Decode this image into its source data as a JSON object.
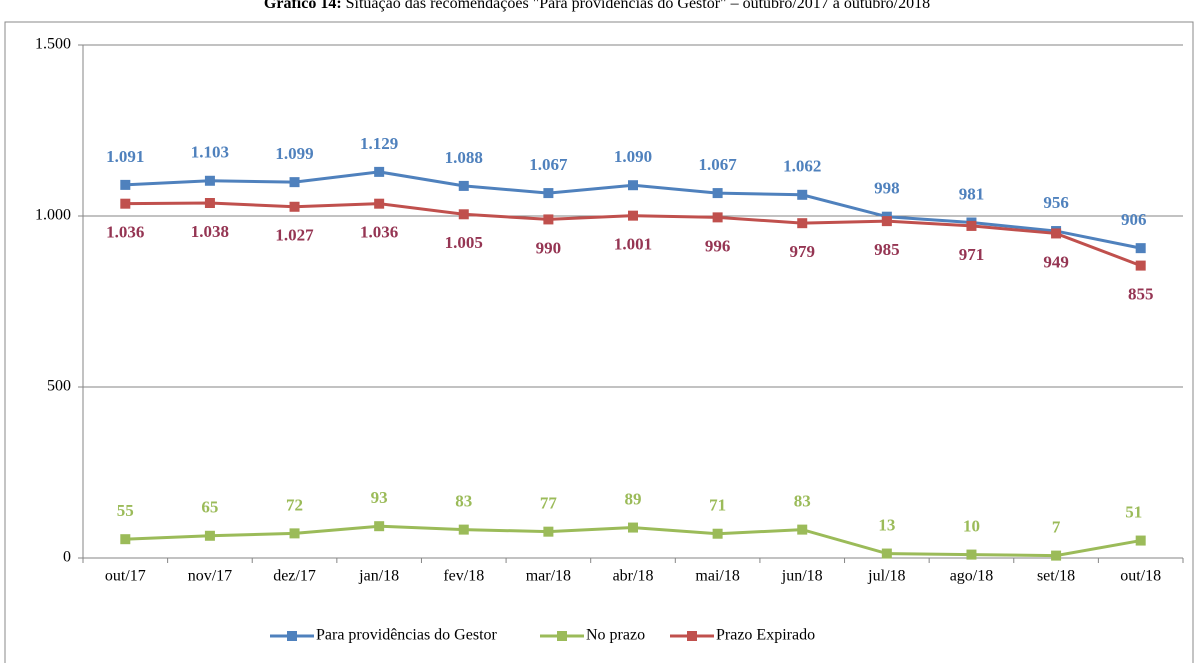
{
  "chart_data": {
    "type": "line",
    "title_label": "Gráfico 14:",
    "title": "Situação das recomendações \"Para providências do Gestor\" – outubro/2017 a outubro/2018",
    "categories": [
      "out/17",
      "nov/17",
      "dez/17",
      "jan/18",
      "fev/18",
      "mar/18",
      "abr/18",
      "mai/18",
      "jun/18",
      "jul/18",
      "ago/18",
      "set/18",
      "out/18"
    ],
    "series": [
      {
        "name": "Para providências do Gestor",
        "color": "#4f81bd",
        "label_color": "#4f81bd",
        "values": [
          1091,
          1103,
          1099,
          1129,
          1088,
          1067,
          1090,
          1067,
          1062,
          998,
          981,
          956,
          906
        ],
        "value_labels": [
          "1.091",
          "1.103",
          "1.099",
          "1.129",
          "1.088",
          "1.067",
          "1.090",
          "1.067",
          "1.062",
          "998",
          "981",
          "956",
          "906"
        ]
      },
      {
        "name": "No prazo",
        "color": "#9bbb59",
        "label_color": "#9bbb59",
        "values": [
          55,
          65,
          72,
          93,
          83,
          77,
          89,
          71,
          83,
          13,
          10,
          7,
          51
        ],
        "value_labels": [
          "55",
          "65",
          "72",
          "93",
          "83",
          "77",
          "89",
          "71",
          "83",
          "13",
          "10",
          "7",
          "51"
        ]
      },
      {
        "name": "Prazo Expirado",
        "color": "#c0504d",
        "label_color": "#953553",
        "values": [
          1036,
          1038,
          1027,
          1036,
          1005,
          990,
          1001,
          996,
          979,
          985,
          971,
          949,
          855
        ],
        "value_labels": [
          "1.036",
          "1.038",
          "1.027",
          "1.036",
          "1.005",
          "990",
          "1.001",
          "996",
          "979",
          "985",
          "971",
          "949",
          "855"
        ]
      }
    ],
    "ylim": [
      0,
      1500
    ],
    "yticks": [
      0,
      500,
      {
        "value": 1000,
        "label": "1.000"
      },
      {
        "value": 1500,
        "label": "1.500"
      }
    ],
    "grid": true,
    "legend": "bottom"
  }
}
